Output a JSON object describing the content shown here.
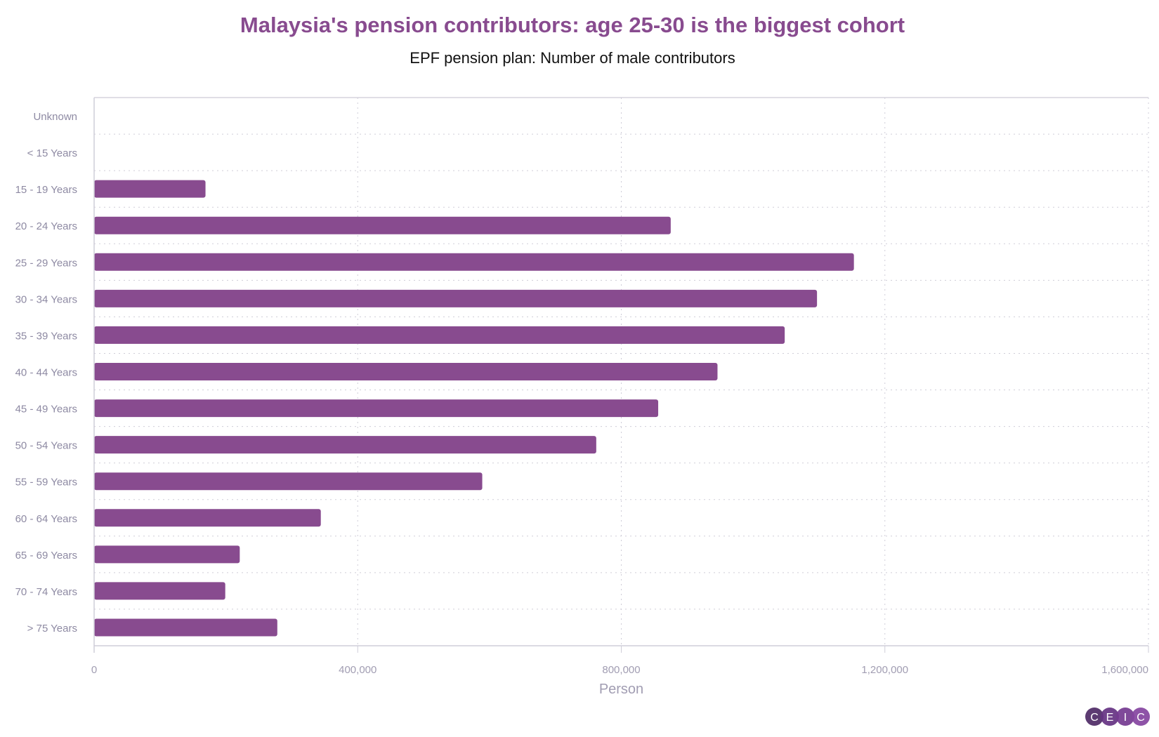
{
  "chart_data": {
    "type": "bar",
    "orientation": "horizontal",
    "title": "Malaysia's pension contributors: age 25-30 is the biggest cohort",
    "subtitle": "EPF pension plan: Number of male contributors",
    "xlabel": "Person",
    "ylabel": "",
    "xlim": [
      0,
      1600000
    ],
    "xticks": [
      "0",
      "400,000",
      "800,000",
      "1,200,000",
      "1,600,000"
    ],
    "grid": true,
    "categories": [
      "Unknown",
      "< 15 Years",
      "15 - 19 Years",
      "20 - 24 Years",
      "25 - 29 Years",
      "30 - 34 Years",
      "35 - 39 Years",
      "40 - 44 Years",
      "45 - 49 Years",
      "50 - 54 Years",
      "55 - 59 Years",
      "60 - 64 Years",
      "65 - 69 Years",
      "70 - 74 Years",
      "> 75 Years"
    ],
    "values": [
      0,
      0,
      169000,
      875000,
      1153000,
      1097000,
      1048000,
      946000,
      856000,
      762000,
      589000,
      344000,
      221000,
      199000,
      278000
    ],
    "bar_color": "#884b8f"
  },
  "logo": {
    "text": "CEIC",
    "letters": [
      "C",
      "E",
      "I",
      "C"
    ],
    "colors": [
      "#4e2a66",
      "#653282",
      "#743a90",
      "#8444a0"
    ]
  }
}
